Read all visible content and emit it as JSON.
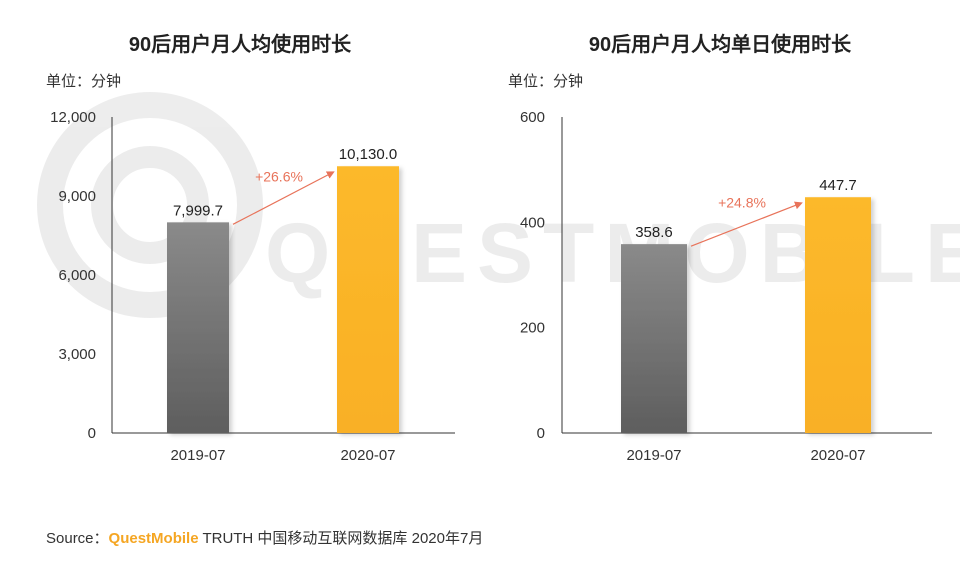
{
  "charts": {
    "left": {
      "title": "90后用户月人均使用时长",
      "unit": "单位：分钟"
    },
    "right": {
      "title": "90后用户月人均单日使用时长",
      "unit": "单位：分钟"
    }
  },
  "colors": {
    "bar_2019": "#707070",
    "bar_2020": "#fbb62a",
    "growth_arrow": "#e8735a"
  },
  "watermark": "QUESTMOBILE",
  "footer": {
    "prefix": "Source：",
    "brand": "QuestMobile",
    "rest": " TRUTH 中国移动互联网数据库 2020年7月"
  },
  "chart_data": [
    {
      "type": "bar",
      "title": "90后用户月人均使用时长",
      "ylabel": "单位：分钟",
      "categories": [
        "2019-07",
        "2020-07"
      ],
      "values": [
        7999.7,
        10130.0
      ],
      "value_labels": [
        "7,999.7",
        "10,130.0"
      ],
      "ylim": [
        0,
        12000
      ],
      "yticks": [
        0,
        3000,
        6000,
        9000,
        12000
      ],
      "ytick_labels": [
        "0",
        "3,000",
        "6,000",
        "9,000",
        "12,000"
      ],
      "annotation": "+26.6%",
      "grid": false
    },
    {
      "type": "bar",
      "title": "90后用户月人均单日使用时长",
      "ylabel": "单位：分钟",
      "categories": [
        "2019-07",
        "2020-07"
      ],
      "values": [
        358.6,
        447.7
      ],
      "value_labels": [
        "358.6",
        "447.7"
      ],
      "ylim": [
        0,
        600
      ],
      "yticks": [
        0,
        200,
        400,
        600
      ],
      "ytick_labels": [
        "0",
        "200",
        "400",
        "600"
      ],
      "annotation": "+24.8%",
      "grid": false
    }
  ]
}
